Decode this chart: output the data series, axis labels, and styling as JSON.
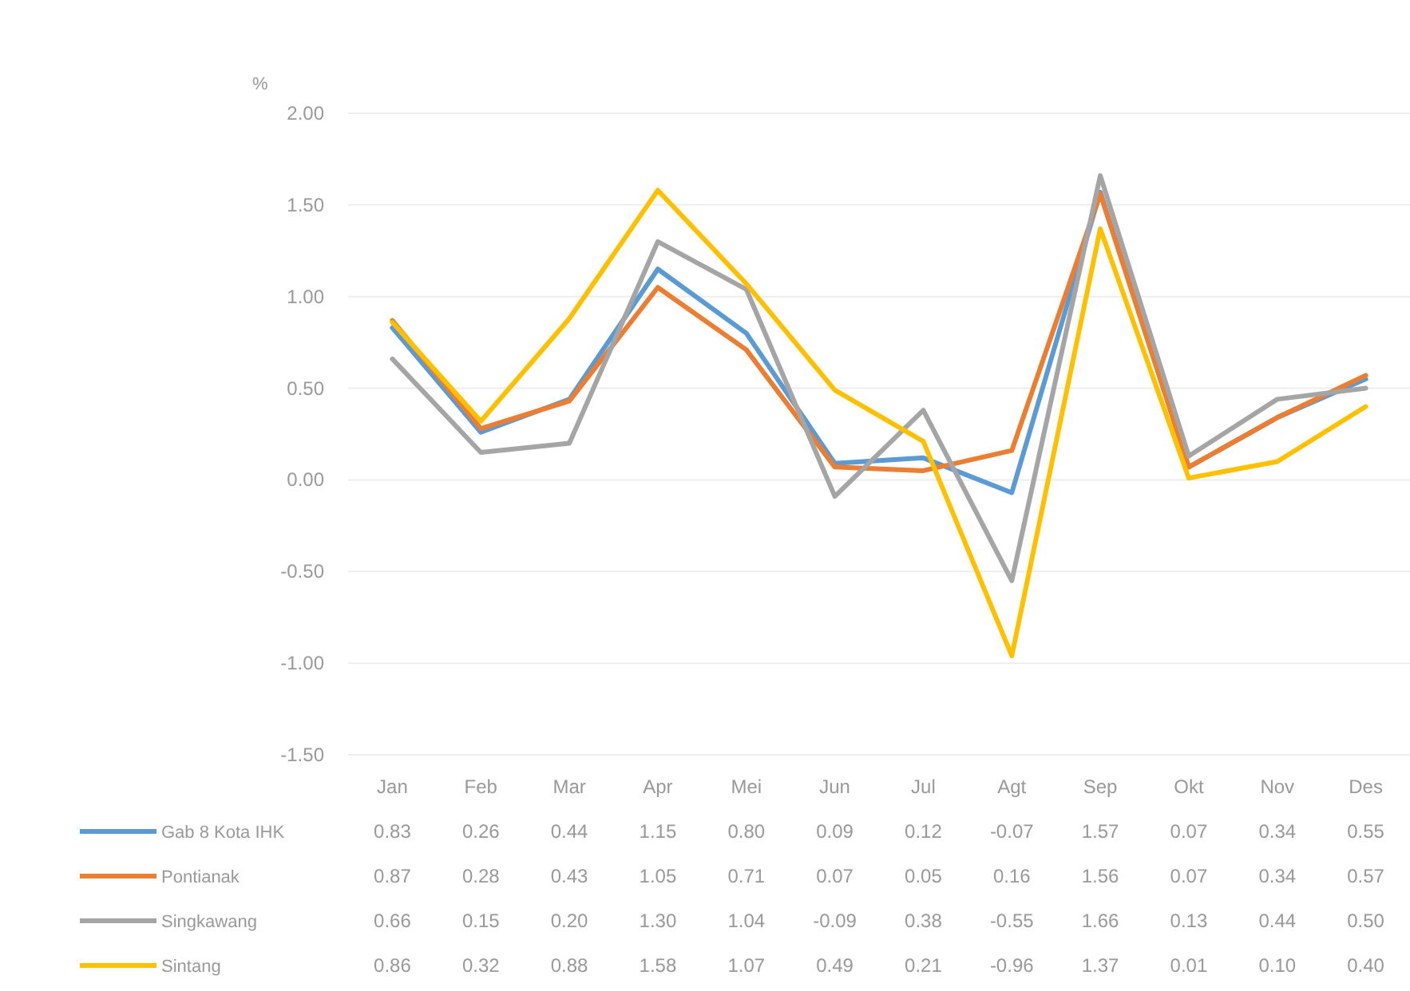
{
  "chart_data": {
    "type": "line",
    "ylabel": "%",
    "categories": [
      "Jan",
      "Feb",
      "Mar",
      "Apr",
      "Mei",
      "Jun",
      "Jul",
      "Agt",
      "Sep",
      "Okt",
      "Nov",
      "Des"
    ],
    "ylim": [
      -1.5,
      2
    ],
    "yticks": [
      {
        "value": 2,
        "label": "2.00"
      },
      {
        "value": 1.5,
        "label": "1.50"
      },
      {
        "value": 1,
        "label": "1.00"
      },
      {
        "value": 0.5,
        "label": "0.50"
      },
      {
        "value": 0,
        "label": "0.00"
      },
      {
        "value": -0.5,
        "label": "-0.50"
      },
      {
        "value": -1,
        "label": "-1.00"
      },
      {
        "value": -1.5,
        "label": "-1.50"
      }
    ],
    "grid": "y",
    "legend": "bottom",
    "marker": "none",
    "line_style": "solid",
    "series": [
      {
        "name": "Gab 8 Kota IHK",
        "color": "#5b9bd5",
        "values": [
          0.83,
          0.26,
          0.44,
          1.15,
          0.8,
          0.09,
          0.12,
          -0.07,
          1.57,
          0.07,
          0.34,
          0.55
        ],
        "value_labels": [
          "0.83",
          "0.26",
          "0.44",
          "1.15",
          "0.80",
          "0.09",
          "0.12",
          "-0.07",
          "1.57",
          "0.07",
          "0.34",
          "0.55"
        ]
      },
      {
        "name": "Pontianak",
        "color": "#ed7d31",
        "values": [
          0.87,
          0.28,
          0.43,
          1.05,
          0.71,
          0.07,
          0.05,
          0.16,
          1.56,
          0.07,
          0.34,
          0.57
        ],
        "value_labels": [
          "0.87",
          "0.28",
          "0.43",
          "1.05",
          "0.71",
          "0.07",
          "0.05",
          "0.16",
          "1.56",
          "0.07",
          "0.34",
          "0.57"
        ]
      },
      {
        "name": "Singkawang",
        "color": "#a5a5a5",
        "values": [
          0.66,
          0.15,
          0.2,
          1.3,
          1.04,
          -0.09,
          0.38,
          -0.55,
          1.66,
          0.13,
          0.44,
          0.5
        ],
        "value_labels": [
          "0.66",
          "0.15",
          "0.20",
          "1.30",
          "1.04",
          "-0.09",
          "0.38",
          "-0.55",
          "1.66",
          "0.13",
          "0.44",
          "0.50"
        ]
      },
      {
        "name": "Sintang",
        "color": "#ffc000",
        "values": [
          0.86,
          0.32,
          0.88,
          1.58,
          1.07,
          0.49,
          0.21,
          -0.96,
          1.37,
          0.01,
          0.1,
          0.4
        ],
        "value_labels": [
          "0.86",
          "0.32",
          "0.88",
          "1.58",
          "1.07",
          "0.49",
          "0.21",
          "-0.96",
          "1.37",
          "0.01",
          "0.10",
          "0.40"
        ]
      }
    ]
  }
}
